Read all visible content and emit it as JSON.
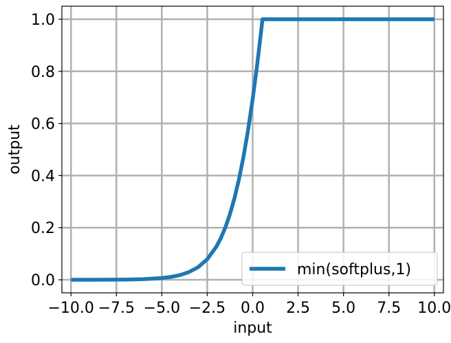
{
  "chart_data": {
    "type": "line",
    "xlabel": "input",
    "ylabel": "output",
    "xlim": [
      -10.5,
      10.5
    ],
    "ylim": [
      -0.05,
      1.05
    ],
    "x_ticks": [
      -10.0,
      -7.5,
      -5.0,
      -2.5,
      0.0,
      2.5,
      5.0,
      7.5,
      10.0
    ],
    "x_tick_labels": [
      "−10.0",
      "−7.5",
      "−5.0",
      "−2.5",
      "0.0",
      "2.5",
      "5.0",
      "7.5",
      "10.0"
    ],
    "y_ticks": [
      0.0,
      0.2,
      0.4,
      0.6,
      0.8,
      1.0
    ],
    "y_tick_labels": [
      "0.0",
      "0.2",
      "0.4",
      "0.6",
      "0.8",
      "1.0"
    ],
    "grid": true,
    "legend_position": "bottom-right",
    "series": [
      {
        "name": "min(softplus,1)",
        "color": "#1f77b4",
        "x": [
          -10.0,
          -9.0,
          -8.0,
          -7.0,
          -6.0,
          -5.0,
          -4.5,
          -4.0,
          -3.5,
          -3.0,
          -2.5,
          -2.0,
          -1.75,
          -1.5,
          -1.25,
          -1.0,
          -0.75,
          -0.5,
          -0.25,
          0.0,
          0.25,
          0.5,
          0.5413,
          1.0,
          2.5,
          5.0,
          7.5,
          10.0
        ],
        "y": [
          0.0,
          0.0001,
          0.0003,
          0.0009,
          0.0025,
          0.0067,
          0.011,
          0.0181,
          0.0298,
          0.0486,
          0.0789,
          0.1269,
          0.1601,
          0.2014,
          0.2519,
          0.3133,
          0.3868,
          0.4741,
          0.5758,
          0.6931,
          0.826,
          0.9741,
          1.0,
          1.0,
          1.0,
          1.0,
          1.0,
          1.0
        ]
      }
    ]
  }
}
